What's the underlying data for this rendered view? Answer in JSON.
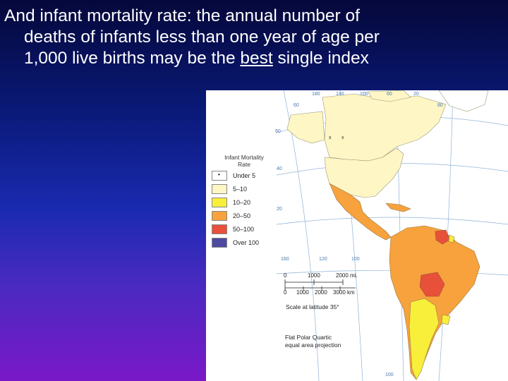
{
  "title": {
    "line1": "And infant mortality rate: the annual number of",
    "line2": "deaths of infants less than one year of age per",
    "line3_pre": "1,000 live births  may be the ",
    "line3_u": "best",
    "line3_post": " single index"
  },
  "legend": {
    "title_line1": "Infant Mortality",
    "title_line2": "Rate",
    "items": [
      {
        "label": "Under 5",
        "color": "#ffffff"
      },
      {
        "label": "5–10",
        "color": "#fef6c4"
      },
      {
        "label": "10–20",
        "color": "#f8ef3a"
      },
      {
        "label": "20–50",
        "color": "#f7a23c"
      },
      {
        "label": "50–100",
        "color": "#e8503a"
      },
      {
        "label": "Over 100",
        "color": "#4e4aa0"
      }
    ]
  },
  "scale": {
    "top_labels": [
      "0",
      "1000",
      "2000 mi."
    ],
    "bottom_labels": [
      "0",
      "1000",
      "2000",
      "3000 km"
    ],
    "latitude": "Scale at latitude 35°"
  },
  "projection": {
    "line1": "Flat Polar Quartic",
    "line2": "equal area projection"
  },
  "graticule": {
    "top": [
      "180",
      "140",
      "100",
      "60",
      "20"
    ],
    "left": [
      "60",
      "40",
      "20"
    ],
    "other": [
      "60",
      "80",
      "160",
      "120",
      "100",
      "100"
    ]
  },
  "marks": {
    "x1": "x",
    "x2": "x",
    "dot": "•"
  }
}
